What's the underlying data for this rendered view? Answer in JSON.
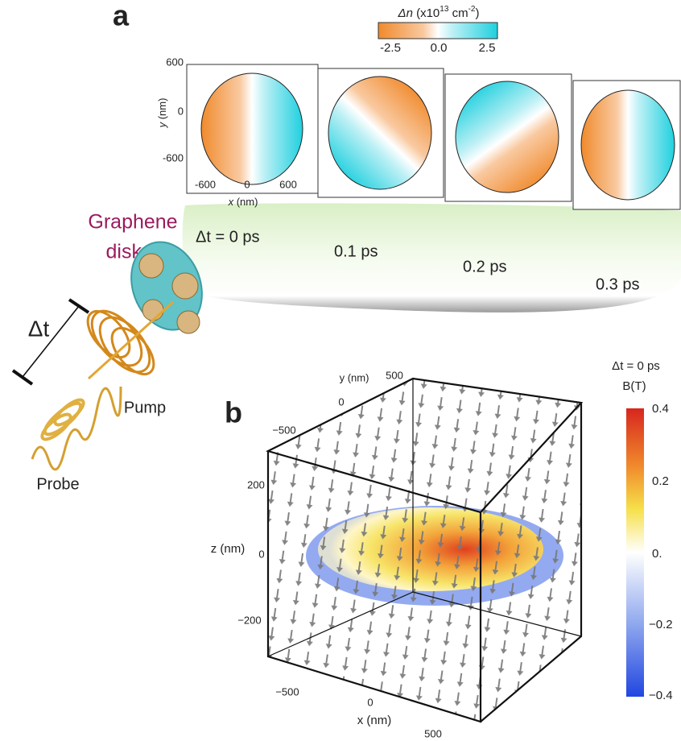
{
  "panel_a": {
    "label": "a",
    "colorbar": {
      "quantity": "Δn",
      "prefix": " (x10",
      "exponent": "13",
      "unit": " cm",
      "unit_exponent": "-2",
      "suffix": ")",
      "ticks": [
        "-2.5",
        "0.0",
        "2.5"
      ]
    },
    "map_axes": {
      "y_label": "y",
      "y_unit": " (nm)",
      "y_ticks": [
        "600",
        "0",
        "-600"
      ],
      "x_label": "x",
      "x_unit": " (nm)",
      "x_ticks": [
        "-600",
        "0",
        "600"
      ]
    },
    "time_labels": [
      "Δt = 0 ps",
      "0.1 ps",
      "0.2 ps",
      "0.3 ps"
    ],
    "sample_label": [
      "Graphene",
      "disks"
    ],
    "delay_label": "Δt",
    "pump_label": "Pump",
    "probe_label": "Probe"
  },
  "panel_b": {
    "label": "b",
    "colorbar": {
      "title": "Δt = 0 ps",
      "quantity": "B(T)",
      "ticks": [
        "0.4",
        "0.2",
        "0.",
        "−0.2",
        "−0.4"
      ]
    },
    "y_axis": {
      "label": "y (nm)",
      "ticks": [
        "500",
        "0",
        "−500"
      ]
    },
    "z_axis": {
      "label": "z (nm)",
      "ticks": [
        "200",
        "0",
        "−200"
      ]
    },
    "x_axis": {
      "label": "x (nm)",
      "ticks": [
        "−500",
        "0",
        "500"
      ]
    }
  }
}
